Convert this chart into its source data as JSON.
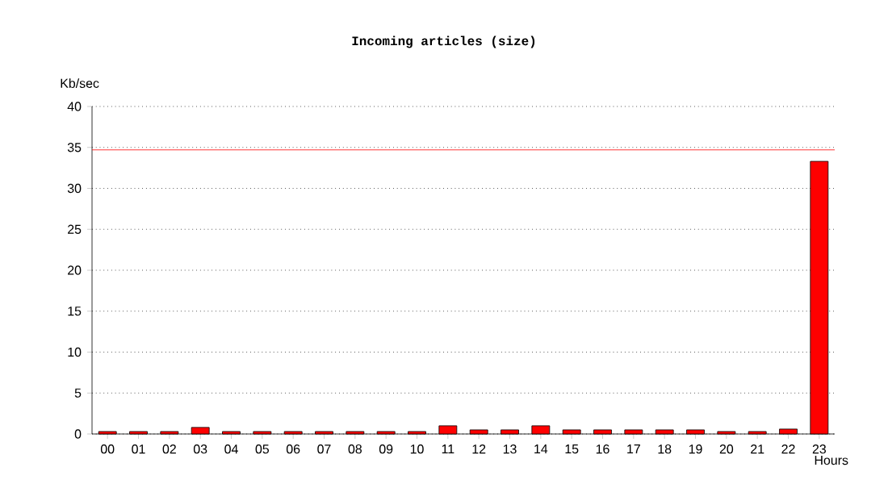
{
  "chart_data": {
    "type": "bar",
    "title": "Incoming articles (size)",
    "xlabel": "Hours",
    "ylabel": "Kb/sec",
    "categories": [
      "00",
      "01",
      "02",
      "03",
      "04",
      "05",
      "06",
      "07",
      "08",
      "09",
      "10",
      "11",
      "12",
      "13",
      "14",
      "15",
      "16",
      "17",
      "18",
      "19",
      "20",
      "21",
      "22",
      "23"
    ],
    "values": [
      0.3,
      0.3,
      0.3,
      0.8,
      0.3,
      0.3,
      0.3,
      0.3,
      0.3,
      0.3,
      0.3,
      1.0,
      0.5,
      0.5,
      1.0,
      0.5,
      0.5,
      0.5,
      0.5,
      0.5,
      0.3,
      0.3,
      0.6,
      33.3
    ],
    "color": "#ff0000",
    "ylim": [
      0,
      40
    ],
    "yticks": [
      0,
      5,
      10,
      15,
      20,
      25,
      30,
      35,
      40
    ],
    "grid": "y",
    "ref_lines": [
      {
        "axis": "y",
        "value": 34.7,
        "color": "#ff0000"
      }
    ]
  }
}
